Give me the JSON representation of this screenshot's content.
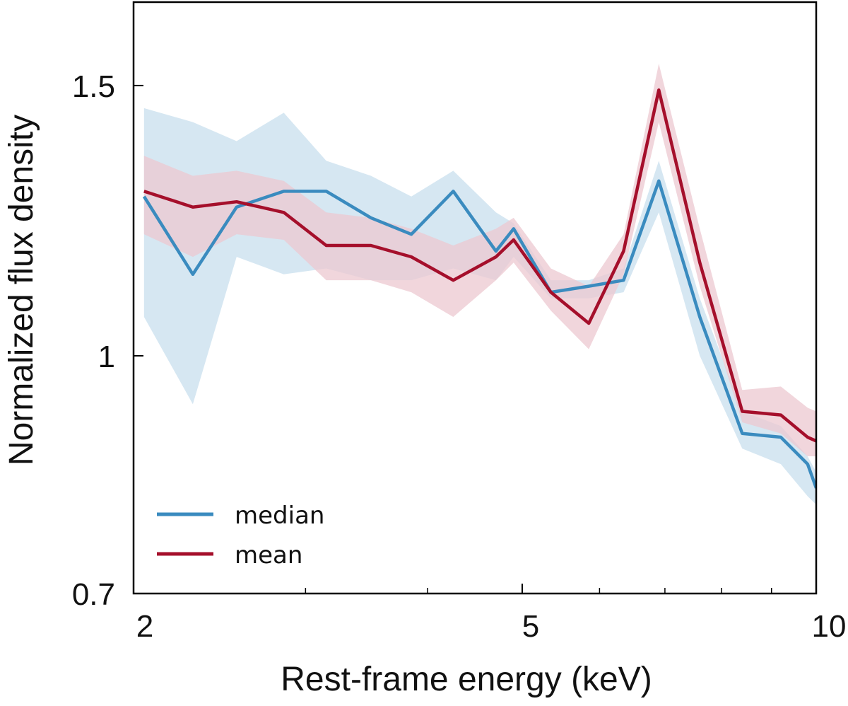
{
  "chart_data": {
    "type": "line",
    "xscale": "log",
    "yscale": "log",
    "xlabel": "Rest-frame energy (keV)",
    "ylabel": "Normalized flux density",
    "xlim": [
      2,
      10
    ],
    "ylim": [
      0.7,
      1.7
    ],
    "xticks": [
      {
        "value": 2,
        "label": "2"
      },
      {
        "value": 5,
        "label": "5"
      },
      {
        "value": 10,
        "label": "10"
      }
    ],
    "x_minor_ticks": [
      3,
      4,
      6,
      7,
      8,
      9
    ],
    "yticks": [
      {
        "value": 0.7,
        "label": "0.7"
      },
      {
        "value": 1,
        "label": "1"
      },
      {
        "value": 1.5,
        "label": "1.5"
      }
    ],
    "legend_position": "lower-left",
    "colors": {
      "median": "#3a8bbf",
      "mean": "#a50f2b",
      "median_band": "#d4e6f1",
      "mean_band": "#ecc8d0"
    },
    "series": [
      {
        "name": "median",
        "x": [
          2.05,
          2.3,
          2.55,
          2.85,
          3.15,
          3.5,
          3.85,
          4.25,
          4.7,
          4.9,
          5.35,
          5.85,
          6.35,
          6.9,
          7.6,
          8.4,
          9.2,
          9.8,
          10.0
        ],
        "y": [
          1.27,
          1.13,
          1.25,
          1.28,
          1.28,
          1.23,
          1.2,
          1.28,
          1.17,
          1.21,
          1.1,
          1.11,
          1.12,
          1.3,
          1.06,
          0.89,
          0.885,
          0.85,
          0.82
        ],
        "lower": [
          1.06,
          0.93,
          1.16,
          1.13,
          1.14,
          1.12,
          1.12,
          1.14,
          1.12,
          1.16,
          1.09,
          1.09,
          1.1,
          1.24,
          1.0,
          0.87,
          0.85,
          0.81,
          0.8
        ],
        "upper": [
          1.45,
          1.42,
          1.38,
          1.44,
          1.34,
          1.31,
          1.27,
          1.32,
          1.24,
          1.22,
          1.12,
          1.12,
          1.14,
          1.34,
          1.09,
          0.92,
          0.9,
          0.86,
          0.84
        ]
      },
      {
        "name": "mean",
        "x": [
          2.05,
          2.3,
          2.55,
          2.85,
          3.15,
          3.5,
          3.85,
          4.25,
          4.7,
          4.9,
          5.35,
          5.85,
          6.35,
          6.9,
          7.6,
          8.4,
          9.2,
          9.8,
          10.0
        ],
        "y": [
          1.28,
          1.25,
          1.26,
          1.24,
          1.18,
          1.18,
          1.16,
          1.12,
          1.16,
          1.19,
          1.1,
          1.05,
          1.17,
          1.49,
          1.15,
          0.92,
          0.915,
          0.885,
          0.88
        ],
        "lower": [
          1.2,
          1.16,
          1.2,
          1.19,
          1.12,
          1.12,
          1.1,
          1.06,
          1.12,
          1.15,
          1.07,
          1.01,
          1.13,
          1.42,
          1.11,
          0.905,
          0.89,
          0.86,
          0.86
        ],
        "upper": [
          1.35,
          1.31,
          1.32,
          1.3,
          1.24,
          1.23,
          1.21,
          1.18,
          1.21,
          1.23,
          1.14,
          1.11,
          1.2,
          1.55,
          1.21,
          0.95,
          0.955,
          0.925,
          0.92
        ]
      }
    ]
  }
}
